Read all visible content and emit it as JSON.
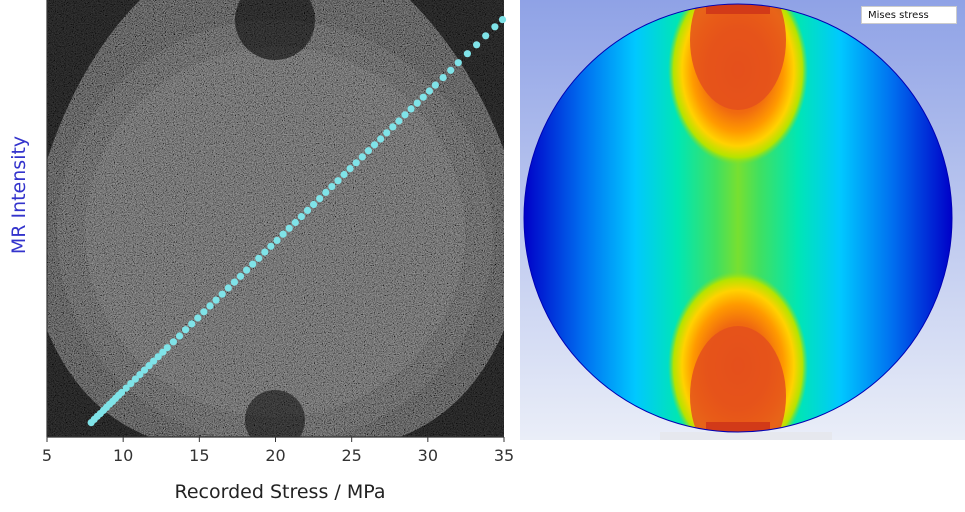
{
  "chart_data": [
    {
      "type": "scatter",
      "title": "",
      "xlabel": "Recorded Stress / MPa",
      "ylabel": "MR Intensity",
      "xlim": [
        5,
        35
      ],
      "x_ticks": [
        "5",
        "10",
        "15",
        "20",
        "25",
        "30",
        "35"
      ],
      "y_ticks": [],
      "grid": false,
      "legend": "none",
      "marker_color": "#7fe3e8",
      "background": "speckled MR image",
      "series": [
        {
          "x": [
            7.9,
            8.1,
            8.3,
            8.5,
            8.7,
            8.9,
            9.1,
            9.3,
            9.5,
            9.7,
            9.9,
            10.2,
            10.5,
            10.8,
            11.1,
            11.4,
            11.7,
            12.0,
            12.3,
            12.6,
            12.9,
            13.3,
            13.7,
            14.1,
            14.5,
            14.9,
            15.3,
            15.7,
            16.1,
            16.5,
            16.9,
            17.3,
            17.7,
            18.1,
            18.5,
            18.9,
            19.3,
            19.7,
            20.1,
            20.5,
            20.9,
            21.3,
            21.7,
            22.1,
            22.5,
            22.9,
            23.3,
            23.7,
            24.1,
            24.5,
            24.9,
            25.3,
            25.7,
            26.1,
            26.5,
            26.9,
            27.3,
            27.7,
            28.1,
            28.5,
            28.9,
            29.3,
            29.7,
            30.1,
            30.5,
            31.0,
            31.5,
            32.0,
            32.6,
            33.2,
            33.8,
            34.4,
            34.9
          ],
          "y": [
            0.01,
            0.019,
            0.028,
            0.036,
            0.045,
            0.054,
            0.063,
            0.071,
            0.08,
            0.089,
            0.097,
            0.11,
            0.123,
            0.136,
            0.149,
            0.162,
            0.175,
            0.188,
            0.201,
            0.214,
            0.227,
            0.244,
            0.261,
            0.279,
            0.296,
            0.313,
            0.331,
            0.348,
            0.365,
            0.382,
            0.4,
            0.417,
            0.434,
            0.452,
            0.469,
            0.486,
            0.504,
            0.521,
            0.538,
            0.556,
            0.573,
            0.59,
            0.607,
            0.625,
            0.642,
            0.659,
            0.677,
            0.694,
            0.711,
            0.729,
            0.746,
            0.763,
            0.78,
            0.798,
            0.815,
            0.832,
            0.85,
            0.867,
            0.884,
            0.902,
            0.919,
            0.936,
            0.953,
            0.971,
            0.988,
            1.01,
            1.031,
            1.053,
            1.079,
            1.105,
            1.131,
            1.157,
            1.178
          ]
        }
      ]
    },
    {
      "type": "heatmap",
      "title": "",
      "legend_label": "Mises stress",
      "colormap": [
        "#0000c8",
        "#00a0ff",
        "#00e0b0",
        "#40e040",
        "#b0e000",
        "#ffd000",
        "#ff7a00",
        "#e34a1a"
      ],
      "background_gradient": [
        "#8fa2e6",
        "#eaeef8"
      ]
    }
  ]
}
